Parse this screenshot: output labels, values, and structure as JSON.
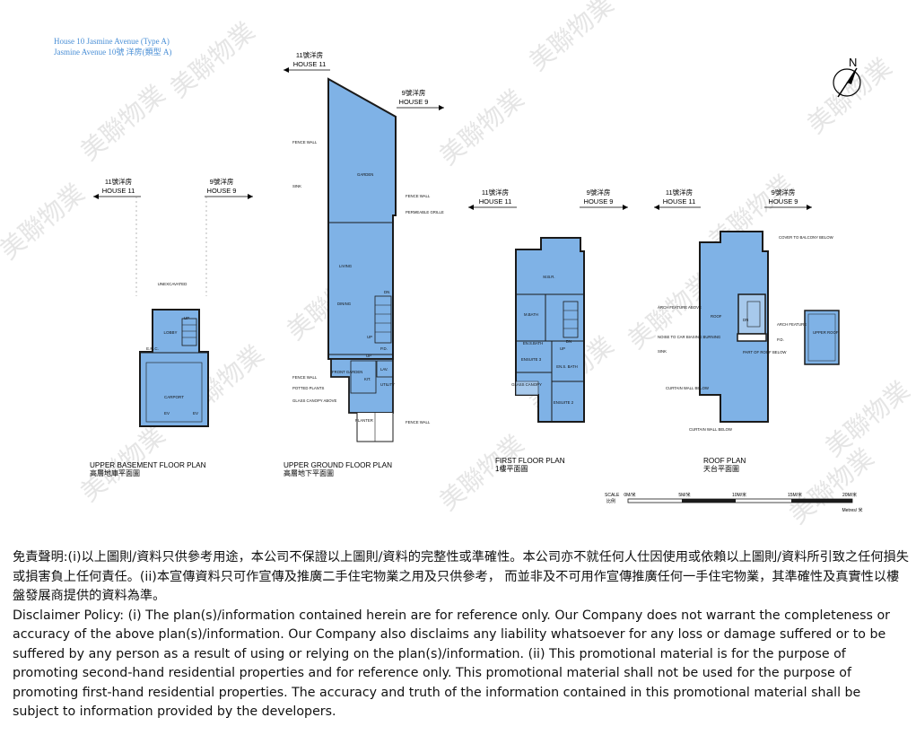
{
  "header": {
    "line1": "House 10 Jasmine Avenue (Type A)",
    "line2": "Jasmine Avenue 10號 洋房(類型 A)"
  },
  "compass": {
    "north_label": "N"
  },
  "house_labels": {
    "house11_zh": "11號洋房",
    "house11_en": "HOUSE 11",
    "house9_zh": "9號洋房",
    "house9_en": "HOUSE 9"
  },
  "plans": [
    {
      "title_en": "UPPER BASEMENT FLOOR PLAN",
      "title_zh": "高層地庫平面圖",
      "rooms": [
        "UNEXCAVATED",
        "LOBBY",
        "UP",
        "E.M.C.",
        "CARPORT",
        "EV",
        "EV"
      ]
    },
    {
      "title_en": "UPPER GROUND FLOOR PLAN",
      "title_zh": "高層地下平面圖",
      "rooms": [
        "FENCE WALL",
        "GARDEN",
        "SINK",
        "FENCE WALL",
        "PERMEABLE GRILLE",
        "LIVING",
        "DINING",
        "UP",
        "DN",
        "P.D.",
        "UP",
        "FENCE WALL",
        "POTTED PLANTS",
        "GLASS CANOPY ABOVE",
        "FRONT GARDEN",
        "KIT.",
        "LAV.",
        "UTILITY",
        "PLANTER",
        "FENCE WALL"
      ]
    },
    {
      "title_en": "FIRST FLOOR PLAN",
      "title_zh": "1樓平面圖",
      "rooms": [
        "M.B.R.",
        "M.BATH",
        "EN.S.BATH",
        "ENSUITE 3",
        "UP",
        "DN",
        "ENSUITE 2",
        "GLASS CANOPY",
        "EN.S. BATH"
      ]
    },
    {
      "title_en": "ROOF PLAN",
      "title_zh": "天台平面圖",
      "rooms": [
        "COVER TO BALCONY BELOW",
        "ARCH FEATURE ABOVE",
        "ROOF",
        "DN",
        "ARCH FEATURE",
        "NOISE TO CAR BIASING BURNING",
        "P.D.",
        "SINK",
        "PART OF ROOF BELOW",
        "CURTAIN WALL BELOW",
        "CURTAIN WALL BELOW",
        "UPPER ROOF"
      ]
    }
  ],
  "scale": {
    "label_en": "SCALE",
    "label_zh": "比例",
    "ticks": [
      "0M/米",
      "5M/米",
      "10M/米",
      "15M/米",
      "20M/米"
    ],
    "unit": "Metres/ 米"
  },
  "watermark": {
    "brand": "美聯物業"
  },
  "colors": {
    "floor_fill": "#7fb2e6",
    "wall": "#1a1a1a",
    "header_text": "#4a8fd6"
  },
  "disclaimer": {
    "zh": "免責聲明:(i)以上圖則/資料只供參考用途，本公司不保證以上圖則/資料的完整性或準確性。本公司亦不就任何人仕因使用或依賴以上圖則/資料所引致之任何損失或損害負上任何責任。(ii)本宣傳資料只可作宣傳及推廣二手住宅物業之用及只供參考， 而並非及不可用作宣傳推廣任何一手住宅物業，其準確性及真實性以樓盤發展商提供的資料為準。",
    "en": "Disclaimer Policy: (i) The plan(s)/information contained herein are for reference only. Our Company does not warrant the completeness or accuracy of the above plan(s)/information. Our Company also disclaims any liability whatsoever for any loss or damage suffered or to be suffered by any person as a result of using or relying on the plan(s)/information. (ii) This promotional material is for the purpose of promoting second-hand residential properties and for reference only. This promotional material shall not be used for the purpose of promoting first-hand residential properties. The accuracy and truth of the information contained in this promotional material shall be subject to information provided by the developers."
  }
}
